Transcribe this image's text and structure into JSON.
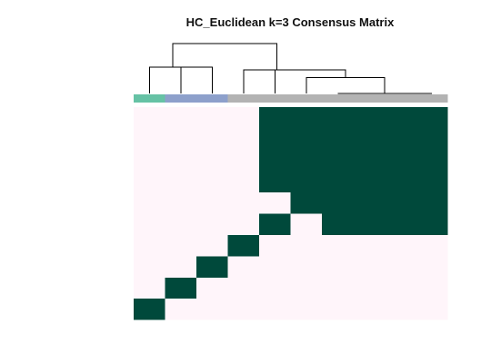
{
  "chart_data": {
    "type": "heatmap",
    "title": "HC_Euclidean k=3 Consensus Matrix",
    "n_samples": 10,
    "colors": {
      "low": "#fff5fa",
      "high": "#00493b",
      "cluster_colors": [
        "#66c2a5",
        "#8da0cb",
        "#b3b3b3"
      ]
    },
    "cluster_assignment": [
      1,
      2,
      2,
      3,
      3,
      3,
      3,
      3,
      3,
      3
    ],
    "matrix": [
      [
        1,
        0,
        0,
        0,
        0,
        0,
        0,
        0,
        0,
        0
      ],
      [
        0,
        1,
        0,
        0,
        0,
        0,
        0,
        0,
        0,
        0
      ],
      [
        0,
        0,
        1,
        0,
        0,
        0,
        0,
        0,
        0,
        0
      ],
      [
        0,
        0,
        0,
        1,
        0,
        0,
        0,
        0,
        0,
        0
      ],
      [
        0,
        0,
        0,
        0,
        1,
        0,
        1,
        1,
        1,
        1
      ],
      [
        0,
        0,
        0,
        0,
        0,
        1,
        1,
        1,
        1,
        1
      ],
      [
        0,
        0,
        0,
        0,
        1,
        1,
        1,
        1,
        1,
        1
      ],
      [
        0,
        0,
        0,
        0,
        1,
        1,
        1,
        1,
        1,
        1
      ],
      [
        0,
        0,
        0,
        0,
        1,
        1,
        1,
        1,
        1,
        1
      ],
      [
        0,
        0,
        0,
        0,
        1,
        1,
        1,
        1,
        1,
        1
      ]
    ],
    "dendrogram": {
      "merges": [
        {
          "left": [
            6
          ],
          "right": [
            7
          ],
          "height": 0.0
        },
        {
          "left": [
            8
          ],
          "right": [
            9
          ],
          "height": 0.0
        },
        {
          "left": [
            6,
            7
          ],
          "right": [
            8,
            9
          ],
          "height": 0.0
        },
        {
          "left": [
            5
          ],
          "right": [
            6,
            7,
            8,
            9
          ],
          "height": 0.6
        },
        {
          "left": [
            4
          ],
          "right": [
            5,
            6,
            7,
            8,
            9
          ],
          "height": 0.9
        },
        {
          "left": [
            3
          ],
          "right": [
            4,
            5,
            6,
            7,
            8,
            9
          ],
          "height": 0.9
        },
        {
          "left": [
            1
          ],
          "right": [
            2
          ],
          "height": 1.0
        },
        {
          "left": [
            0
          ],
          "right": [
            1,
            2
          ],
          "height": 1.0
        },
        {
          "left": [
            0,
            1,
            2
          ],
          "right": [
            3,
            4,
            5,
            6,
            7,
            8,
            9
          ],
          "height": 1.9
        }
      ],
      "max_height": 1.9
    }
  }
}
